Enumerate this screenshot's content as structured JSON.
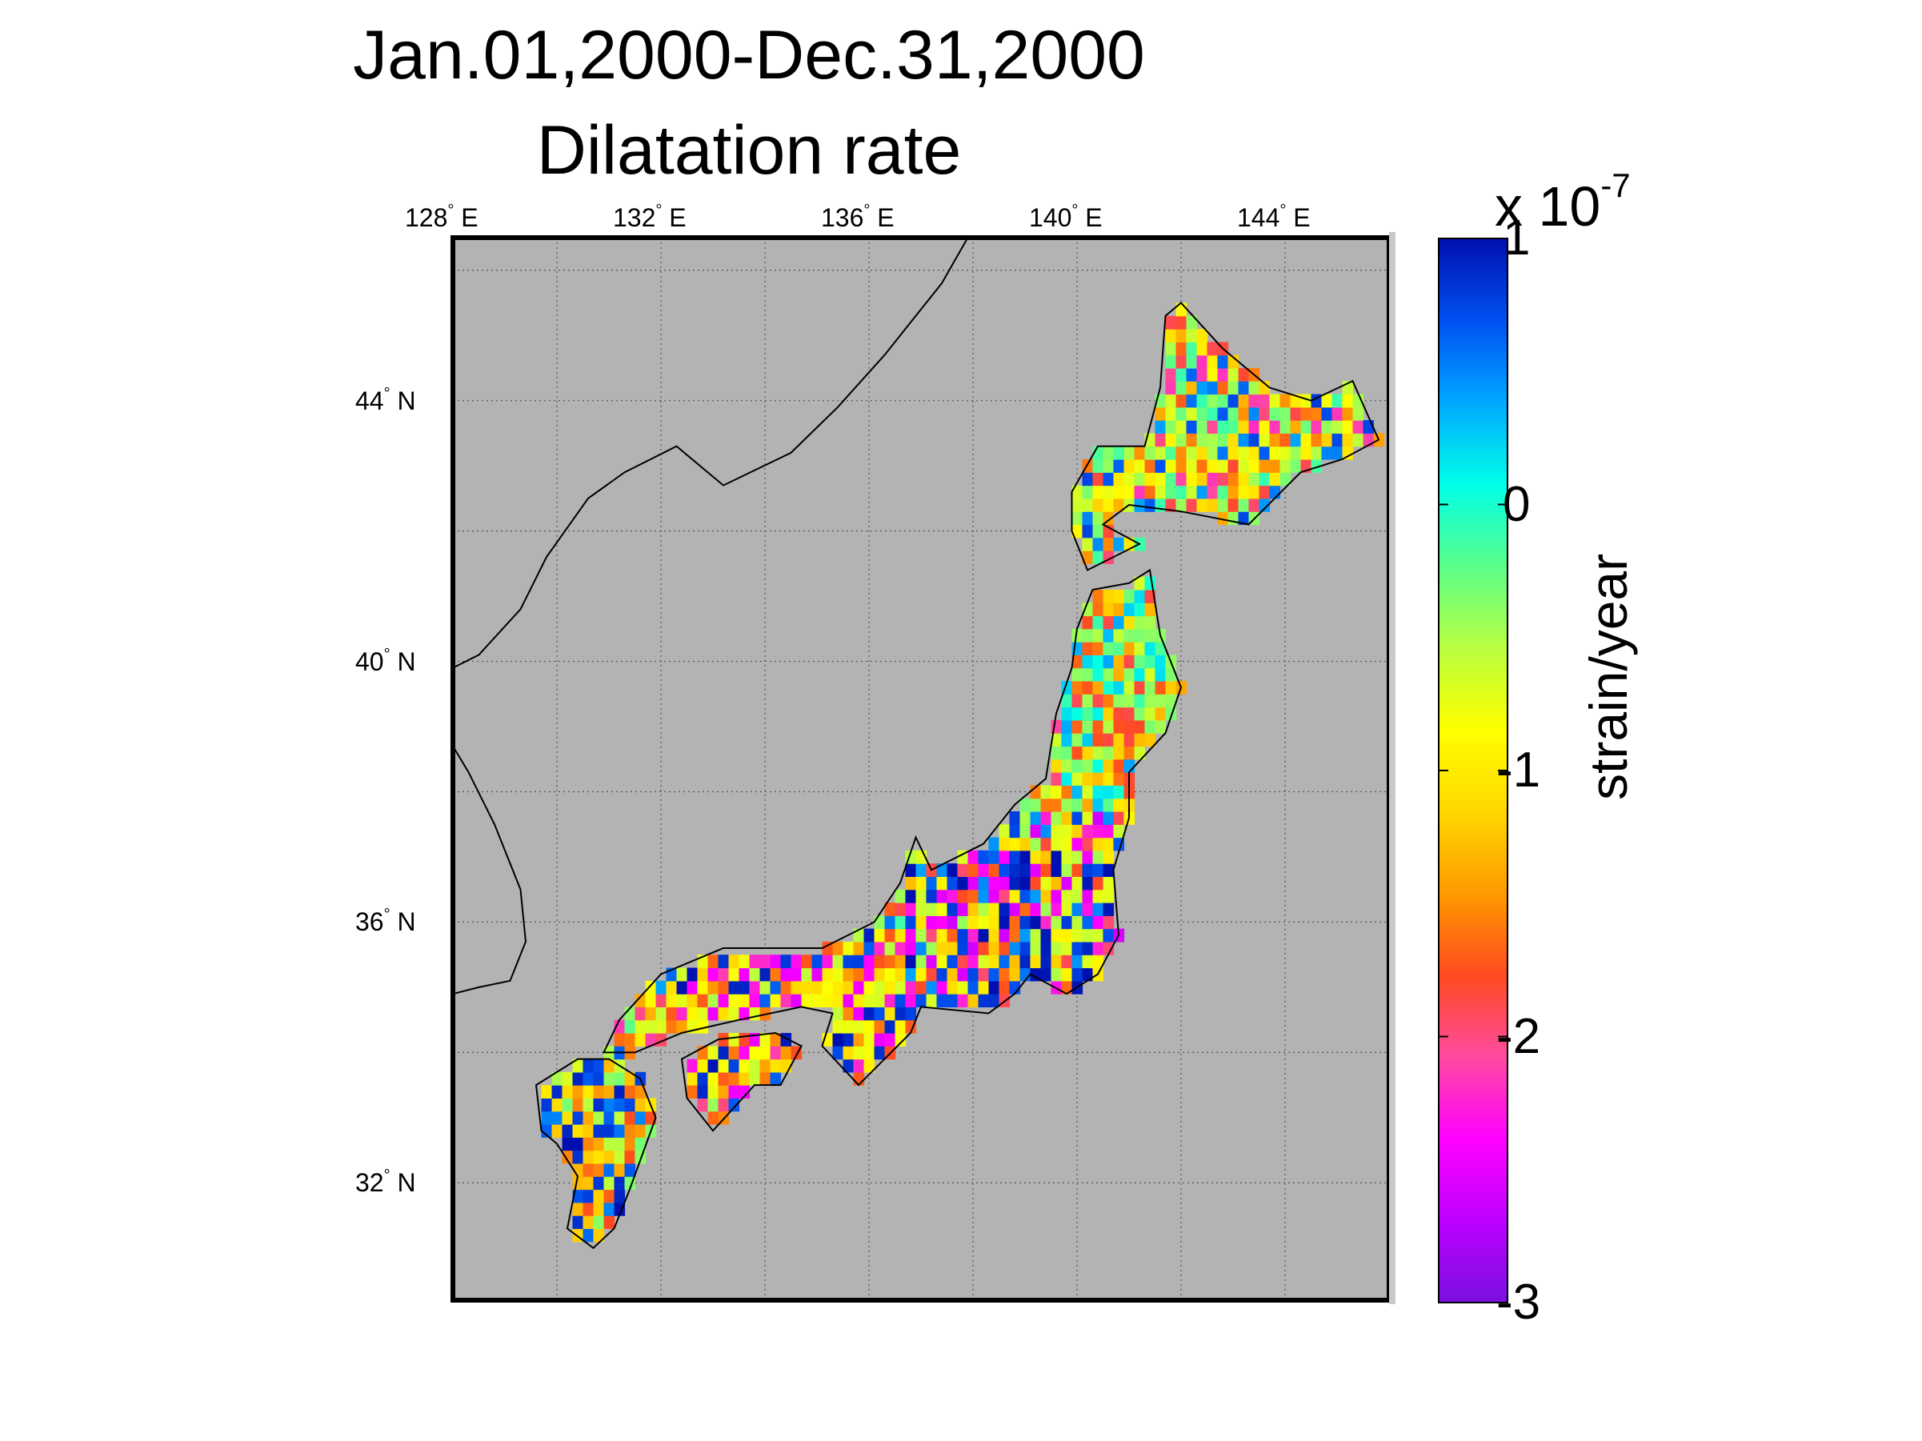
{
  "title": [
    "Jan.01,2000-Dec.31,2000",
    "Dilatation rate"
  ],
  "map": {
    "projection": "lon-lat",
    "lon_range": [
      128,
      146
    ],
    "lat_range": [
      30.2,
      46.5
    ],
    "background_color": "#b3b3b3",
    "grid": true,
    "lon_ticks": [
      {
        "value": 128,
        "label": "128",
        "hemi": "E"
      },
      {
        "value": 132,
        "label": "132",
        "hemi": "E"
      },
      {
        "value": 136,
        "label": "136",
        "hemi": "E"
      },
      {
        "value": 140,
        "label": "140",
        "hemi": "E"
      },
      {
        "value": 144,
        "label": "144",
        "hemi": "E"
      }
    ],
    "lat_ticks": [
      {
        "value": 44,
        "label": "44",
        "hemi": "N"
      },
      {
        "value": 40,
        "label": "40",
        "hemi": "N"
      },
      {
        "value": 36,
        "label": "36",
        "hemi": "N"
      },
      {
        "value": 32,
        "label": "32",
        "hemi": "N"
      }
    ],
    "degree_symbol": "°"
  },
  "colorbar": {
    "label": "strain/year",
    "multiplier": "x 10",
    "exponent": "-7",
    "range": [
      -3,
      1
    ],
    "ticks": [
      {
        "value": 1,
        "label": "1"
      },
      {
        "value": 0,
        "label": "0"
      },
      {
        "value": -1,
        "label": "-1"
      },
      {
        "value": -2,
        "label": "-2"
      },
      {
        "value": -3,
        "label": "-3"
      }
    ],
    "colormap": [
      "#7a10e0",
      "#bd00ff",
      "#ff00ff",
      "#ff4aa0",
      "#ff4a20",
      "#ff9a00",
      "#ffd800",
      "#ffff00",
      "#b8ff40",
      "#5aff8a",
      "#00ffe8",
      "#00a8ff",
      "#0050f0",
      "#0010b0"
    ]
  },
  "chart_data": {
    "type": "heatmap",
    "title": "Jan.01,2000-Dec.31,2000 Dilatation rate",
    "value_label": "strain/year",
    "value_scale": "x 10^-7",
    "value_range": [
      -3,
      1
    ],
    "cell_size_deg": 0.2,
    "regions": [
      {
        "name": "",
        "lat_range": [
          41.4,
          45.5
        ],
        "lon_range": [
          139.8,
          145.8
        ],
        "values": [
          -0.6,
          -1.0,
          -1.5,
          -2.0,
          -0.3,
          0.6
        ]
      },
      {
        "name": "",
        "lat_range": [
          37.8,
          41.5
        ],
        "lon_range": [
          139.6,
          142.0
        ],
        "values": [
          -0.5,
          -1.2,
          -1.7,
          -0.3,
          0.2
        ]
      },
      {
        "name": "",
        "lat_range": [
          34.8,
          37.8
        ],
        "lon_range": [
          136.6,
          141.0
        ],
        "values": [
          -0.6,
          -1.1,
          -1.8,
          0.6,
          0.9,
          -2.4
        ]
      },
      {
        "name": "",
        "lat_range": [
          33.4,
          36.0
        ],
        "lon_range": [
          132.0,
          137.0
        ],
        "values": [
          -0.7,
          -1.0,
          -1.6,
          -2.3,
          0.8
        ]
      },
      {
        "name": "",
        "lat_range": [
          31.0,
          34.0
        ],
        "lon_range": [
          129.6,
          132.0
        ],
        "values": [
          0.7,
          -0.5,
          -1.2,
          -1.6,
          0.9
        ]
      }
    ]
  }
}
